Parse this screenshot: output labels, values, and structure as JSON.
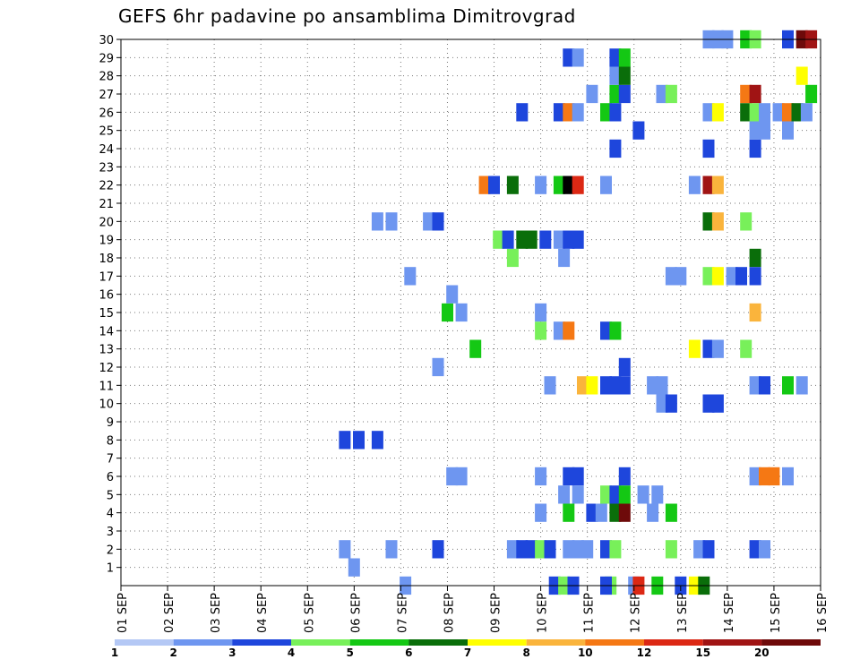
{
  "chart_data": {
    "type": "heatmap",
    "title": "GEFS 6hr padavine po ansamblima Dimitrovgrad",
    "xlabel": "",
    "ylabel": "",
    "x_ticks": [
      "01 SEP",
      "02 SEP",
      "03 SEP",
      "04 SEP",
      "05 SEP",
      "06 SEP",
      "07 SEP",
      "08 SEP",
      "09 SEP",
      "10 SEP",
      "11 SEP",
      "12 SEP",
      "13 SEP",
      "14 SEP",
      "15 SEP",
      "16 SEP"
    ],
    "y_ticks": [
      "1",
      "2",
      "3",
      "4",
      "5",
      "6",
      "7",
      "8",
      "9",
      "10",
      "11",
      "12",
      "13",
      "14",
      "15",
      "16",
      "17",
      "18",
      "19",
      "20",
      "21",
      "22",
      "23",
      "24",
      "25",
      "26",
      "27",
      "28",
      "29",
      "30"
    ],
    "ylim": [
      0,
      30
    ],
    "x_range_days": [
      1,
      16
    ],
    "step_hours": 6,
    "grid": true,
    "legend_position": "bottom",
    "legend_levels": [
      "1",
      "2",
      "3",
      "4",
      "5",
      "6",
      "7",
      "8",
      "10",
      "12",
      "15",
      "20"
    ],
    "colors": [
      "#b4c8f5",
      "#6e96f0",
      "#1e46dc",
      "#78f05a",
      "#14c814",
      "#0a6e0a",
      "#ffff00",
      "#fab43c",
      "#f57814",
      "#dc2814",
      "#a01414",
      "#6e0a0a"
    ],
    "cells": [
      [
        11.5,
        0,
        3
      ],
      [
        12.5,
        0,
        4
      ],
      [
        13,
        0,
        2
      ],
      [
        12,
        0,
        1
      ],
      [
        12.1,
        0,
        9
      ],
      [
        13.3,
        0,
        6
      ],
      [
        13.5,
        0,
        5
      ],
      [
        7.1,
        0,
        1
      ],
      [
        10.3,
        0,
        2
      ],
      [
        10.5,
        0,
        3
      ],
      [
        10.7,
        0,
        2
      ],
      [
        11.4,
        0,
        2
      ],
      [
        6,
        1,
        1
      ],
      [
        5.8,
        2,
        1
      ],
      [
        6.8,
        2,
        1
      ],
      [
        7.8,
        2,
        2
      ],
      [
        9.4,
        2,
        1
      ],
      [
        9.6,
        2,
        2
      ],
      [
        9.8,
        2,
        2
      ],
      [
        10,
        2,
        3
      ],
      [
        10.2,
        2,
        2
      ],
      [
        10.6,
        2,
        1
      ],
      [
        10.8,
        2,
        1
      ],
      [
        11,
        2,
        1
      ],
      [
        11.4,
        2,
        2
      ],
      [
        11.6,
        2,
        3
      ],
      [
        12.8,
        2,
        3
      ],
      [
        13.4,
        2,
        1
      ],
      [
        13.6,
        2,
        2
      ],
      [
        14.6,
        2,
        2
      ],
      [
        14.8,
        2,
        1
      ],
      [
        10,
        4,
        1
      ],
      [
        10.6,
        4,
        4
      ],
      [
        11.1,
        4,
        2
      ],
      [
        11.3,
        4,
        1
      ],
      [
        11.6,
        4,
        5
      ],
      [
        11.8,
        4,
        11
      ],
      [
        12.4,
        4,
        1
      ],
      [
        12.8,
        4,
        4
      ],
      [
        10.5,
        5,
        1
      ],
      [
        10.8,
        5,
        1
      ],
      [
        11.4,
        5,
        3
      ],
      [
        11.6,
        5,
        2
      ],
      [
        11.8,
        5,
        4
      ],
      [
        12.2,
        5,
        1
      ],
      [
        12.5,
        5,
        1
      ],
      [
        8.1,
        6,
        1
      ],
      [
        8.3,
        6,
        1
      ],
      [
        10,
        6,
        1
      ],
      [
        10.6,
        6,
        2
      ],
      [
        10.8,
        6,
        2
      ],
      [
        11.8,
        6,
        2
      ],
      [
        14.6,
        6,
        1
      ],
      [
        14.8,
        6,
        8
      ],
      [
        15,
        6,
        8
      ],
      [
        15.3,
        6,
        1
      ],
      [
        5.8,
        8,
        2
      ],
      [
        6.1,
        8,
        2
      ],
      [
        6.5,
        8,
        2
      ],
      [
        12.6,
        10,
        1
      ],
      [
        12.8,
        10,
        2
      ],
      [
        13.6,
        10,
        2
      ],
      [
        13.8,
        10,
        2
      ],
      [
        10.2,
        11,
        1
      ],
      [
        10.9,
        11,
        7
      ],
      [
        11.1,
        11,
        6
      ],
      [
        11.4,
        11,
        2
      ],
      [
        11.6,
        11,
        2
      ],
      [
        11.8,
        11,
        2
      ],
      [
        12.4,
        11,
        1
      ],
      [
        12.6,
        11,
        1
      ],
      [
        14.6,
        11,
        1
      ],
      [
        14.8,
        11,
        2
      ],
      [
        15.3,
        11,
        4
      ],
      [
        15.6,
        11,
        1
      ],
      [
        7.8,
        12,
        1
      ],
      [
        11.8,
        12,
        2
      ],
      [
        8.6,
        13,
        4
      ],
      [
        13.3,
        13,
        6
      ],
      [
        13.6,
        13,
        2
      ],
      [
        13.8,
        13,
        1
      ],
      [
        14.4,
        13,
        3
      ],
      [
        10,
        14,
        3
      ],
      [
        10.4,
        14,
        1
      ],
      [
        10.6,
        14,
        8
      ],
      [
        11.4,
        14,
        2
      ],
      [
        11.6,
        14,
        4
      ],
      [
        8,
        15,
        4
      ],
      [
        8.3,
        15,
        1
      ],
      [
        10,
        15,
        1
      ],
      [
        14.6,
        15,
        7
      ],
      [
        8.1,
        16,
        1
      ],
      [
        7.2,
        17,
        1
      ],
      [
        12.8,
        17,
        1
      ],
      [
        13,
        17,
        1
      ],
      [
        13.6,
        17,
        3
      ],
      [
        13.8,
        17,
        6
      ],
      [
        14.1,
        17,
        1
      ],
      [
        14.3,
        17,
        2
      ],
      [
        14.6,
        17,
        2
      ],
      [
        9.4,
        18,
        3
      ],
      [
        10.5,
        18,
        1
      ],
      [
        14.6,
        18,
        5
      ],
      [
        9.1,
        19,
        3
      ],
      [
        9.3,
        19,
        2
      ],
      [
        9.6,
        19,
        5
      ],
      [
        9.8,
        19,
        5
      ],
      [
        10.1,
        19,
        2
      ],
      [
        10.4,
        19,
        1
      ],
      [
        10.6,
        19,
        2
      ],
      [
        10.8,
        19,
        2
      ],
      [
        6.5,
        20,
        1
      ],
      [
        6.8,
        20,
        1
      ],
      [
        7.6,
        20,
        1
      ],
      [
        7.8,
        20,
        2
      ],
      [
        13.6,
        20,
        5
      ],
      [
        13.8,
        20,
        7
      ],
      [
        14.4,
        20,
        3
      ],
      [
        8.8,
        22,
        8
      ],
      [
        9,
        22,
        2
      ],
      [
        9.4,
        22,
        5
      ],
      [
        10,
        22,
        1
      ],
      [
        10.4,
        22,
        4
      ],
      [
        10.6,
        22,
        12
      ],
      [
        10.8,
        22,
        9
      ],
      [
        11.4,
        22,
        1
      ],
      [
        13.3,
        22,
        1
      ],
      [
        13.6,
        22,
        10
      ],
      [
        13.8,
        22,
        7
      ],
      [
        11.6,
        24,
        2
      ],
      [
        13.6,
        24,
        2
      ],
      [
        14.6,
        24,
        2
      ],
      [
        12.1,
        25,
        2
      ],
      [
        14.6,
        25,
        1
      ],
      [
        14.8,
        25,
        1
      ],
      [
        15.3,
        25,
        1
      ],
      [
        9.6,
        26,
        2
      ],
      [
        10.4,
        26,
        2
      ],
      [
        10.6,
        26,
        8
      ],
      [
        10.8,
        26,
        1
      ],
      [
        11.4,
        26,
        4
      ],
      [
        11.6,
        26,
        2
      ],
      [
        13.6,
        26,
        1
      ],
      [
        13.8,
        26,
        6
      ],
      [
        14.4,
        26,
        5
      ],
      [
        14.6,
        26,
        3
      ],
      [
        14.8,
        26,
        1
      ],
      [
        15.1,
        26,
        1
      ],
      [
        15.3,
        26,
        8
      ],
      [
        15.5,
        26,
        5
      ],
      [
        15.7,
        26,
        1
      ],
      [
        11.1,
        27,
        1
      ],
      [
        11.6,
        27,
        4
      ],
      [
        11.8,
        27,
        2
      ],
      [
        12.6,
        27,
        1
      ],
      [
        12.8,
        27,
        3
      ],
      [
        14.4,
        27,
        8
      ],
      [
        14.6,
        27,
        10
      ],
      [
        15.8,
        27,
        4
      ],
      [
        11.6,
        28,
        1
      ],
      [
        11.8,
        28,
        5
      ],
      [
        15.6,
        28,
        6
      ],
      [
        10.6,
        29,
        2
      ],
      [
        10.8,
        29,
        1
      ],
      [
        11.6,
        29,
        2
      ],
      [
        11.8,
        29,
        4
      ],
      [
        13.6,
        30,
        1
      ],
      [
        13.8,
        30,
        1
      ],
      [
        14,
        30,
        1
      ],
      [
        14.4,
        30,
        4
      ],
      [
        14.6,
        30,
        3
      ],
      [
        15.3,
        30,
        2
      ],
      [
        15.6,
        30,
        11
      ],
      [
        15.8,
        30,
        10
      ]
    ]
  }
}
